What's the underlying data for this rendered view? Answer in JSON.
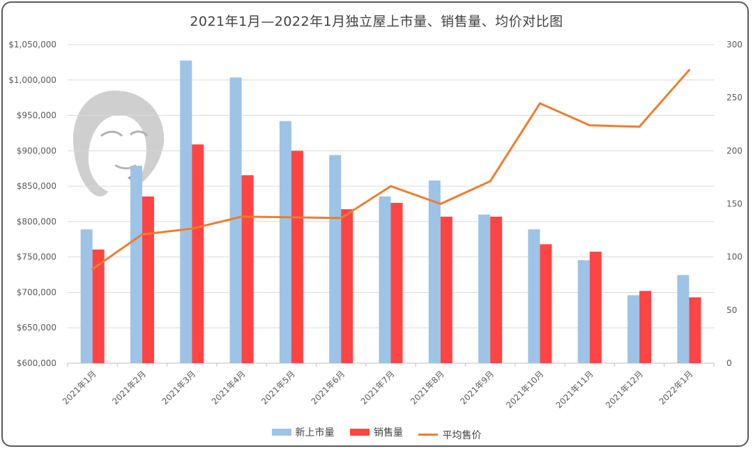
{
  "chart_data": {
    "type": "bar",
    "title": "2021年1月—2022年1月独立屋上市量、销售量、均价对比图",
    "categories": [
      "2021年1月",
      "2021年2月",
      "2021年3月",
      "2021年4月",
      "2021年5月",
      "2021年6月",
      "2021年7月",
      "2021年8月",
      "2021年9月",
      "2021年10月",
      "2021年11月",
      "2021年12月",
      "2022年1月"
    ],
    "y_left": {
      "ylim": [
        600000,
        1050000
      ],
      "ticks": [
        600000,
        650000,
        700000,
        750000,
        800000,
        850000,
        900000,
        950000,
        1000000,
        1050000
      ],
      "tick_labels": [
        "$600,000",
        "$650,000",
        "$700,000",
        "$750,000",
        "$800,000",
        "$850,000",
        "$900,000",
        "$950,000",
        "$1,000,000",
        "$1,050,000"
      ]
    },
    "y_right": {
      "ylim": [
        0,
        300
      ],
      "ticks": [
        0,
        50,
        100,
        150,
        200,
        250,
        300
      ],
      "tick_labels": [
        "0",
        "50",
        "100",
        "150",
        "200",
        "250",
        "300"
      ]
    },
    "series": [
      {
        "name": "新上市量",
        "kind": "bar",
        "axis": "right",
        "color": "#9DC3E6",
        "values": [
          126,
          186,
          285,
          269,
          228,
          196,
          157,
          172,
          140,
          126,
          97,
          64,
          83
        ]
      },
      {
        "name": "销售量",
        "kind": "bar",
        "axis": "right",
        "color": "#FF4444",
        "values": [
          107,
          157,
          206,
          177,
          200,
          145,
          151,
          138,
          138,
          112,
          105,
          68,
          62
        ]
      },
      {
        "name": "平均售价",
        "kind": "line",
        "axis": "left",
        "color": "#ED7D31",
        "values": [
          733000,
          782000,
          790000,
          807000,
          806000,
          805000,
          850000,
          825000,
          857000,
          967000,
          936000,
          934000,
          1014000
        ]
      }
    ],
    "grid": true,
    "legend_position": "bottom"
  }
}
